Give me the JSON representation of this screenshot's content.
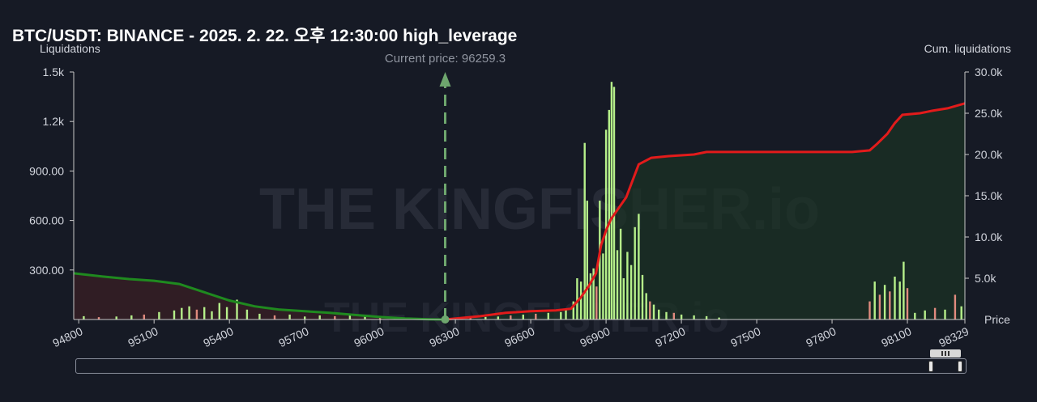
{
  "title": "BTC/USDT: BINANCE - 2025. 2. 22. 오후 12:30:00 high_leverage",
  "colors": {
    "background": "#161a25",
    "bars_green": "#b6f08a",
    "bars_red": "#e08a7e",
    "cum_short": "#e21b1b",
    "cum_long": "#1f8a1f",
    "current_price_line": "#6ea66e"
  },
  "watermark": "THE KINGFISHER.io",
  "chart_data": {
    "type": "bar",
    "title": "BTC/USDT: BINANCE - 2025. 2. 22. 오후 12:30:00 high_leverage",
    "xlabel": "Price",
    "ylabel": "Liquidations",
    "y2label": "Cum. liquidations",
    "current_price_label": "Current price: 96259.3",
    "current_price": 96259.3,
    "xlim": [
      94780,
      98329
    ],
    "ylim": [
      0,
      1500
    ],
    "y2lim": [
      0,
      30000
    ],
    "x_ticks": [
      "94800",
      "95100",
      "95400",
      "95700",
      "96000",
      "96300",
      "96600",
      "96900",
      "97200",
      "97500",
      "97800",
      "98100",
      "98329"
    ],
    "x_tick_values": [
      94800,
      95100,
      95400,
      95700,
      96000,
      96300,
      96600,
      96900,
      97200,
      97500,
      97800,
      98100,
      98329
    ],
    "y_ticks": [
      "1.5k",
      "1.2k",
      "900.00",
      "600.00",
      "300.00"
    ],
    "y_tick_values": [
      1500,
      1200,
      900,
      600,
      300
    ],
    "y2_ticks": [
      "30.0k",
      "25.0k",
      "20.0k",
      "15.0k",
      "10.0k",
      "5.0k"
    ],
    "y2_tick_values": [
      30000,
      25000,
      20000,
      15000,
      10000,
      5000
    ],
    "grid": false,
    "bars": [
      {
        "x": 94820,
        "v": 20,
        "c": "g"
      },
      {
        "x": 94880,
        "v": 14,
        "c": "r"
      },
      {
        "x": 94950,
        "v": 18,
        "c": "g"
      },
      {
        "x": 95010,
        "v": 25,
        "c": "g"
      },
      {
        "x": 95060,
        "v": 30,
        "c": "r"
      },
      {
        "x": 95120,
        "v": 45,
        "c": "g"
      },
      {
        "x": 95180,
        "v": 55,
        "c": "g"
      },
      {
        "x": 95210,
        "v": 70,
        "c": "g"
      },
      {
        "x": 95240,
        "v": 80,
        "c": "g"
      },
      {
        "x": 95270,
        "v": 60,
        "c": "r"
      },
      {
        "x": 95300,
        "v": 75,
        "c": "g"
      },
      {
        "x": 95330,
        "v": 50,
        "c": "g"
      },
      {
        "x": 95360,
        "v": 100,
        "c": "g"
      },
      {
        "x": 95390,
        "v": 75,
        "c": "g"
      },
      {
        "x": 95430,
        "v": 120,
        "c": "g"
      },
      {
        "x": 95470,
        "v": 60,
        "c": "g"
      },
      {
        "x": 95520,
        "v": 35,
        "c": "g"
      },
      {
        "x": 95580,
        "v": 25,
        "c": "r"
      },
      {
        "x": 95640,
        "v": 30,
        "c": "g"
      },
      {
        "x": 95700,
        "v": 18,
        "c": "g"
      },
      {
        "x": 95760,
        "v": 25,
        "c": "g"
      },
      {
        "x": 95820,
        "v": 20,
        "c": "r"
      },
      {
        "x": 95880,
        "v": 30,
        "c": "g"
      },
      {
        "x": 95940,
        "v": 20,
        "c": "g"
      },
      {
        "x": 96000,
        "v": 15,
        "c": "r"
      },
      {
        "x": 96060,
        "v": 12,
        "c": "g"
      },
      {
        "x": 96120,
        "v": 8,
        "c": "g"
      },
      {
        "x": 96310,
        "v": 10,
        "c": "r"
      },
      {
        "x": 96360,
        "v": 12,
        "c": "r"
      },
      {
        "x": 96420,
        "v": 15,
        "c": "g"
      },
      {
        "x": 96470,
        "v": 18,
        "c": "g"
      },
      {
        "x": 96520,
        "v": 25,
        "c": "r"
      },
      {
        "x": 96570,
        "v": 30,
        "c": "g"
      },
      {
        "x": 96620,
        "v": 35,
        "c": "r"
      },
      {
        "x": 96670,
        "v": 40,
        "c": "g"
      },
      {
        "x": 96720,
        "v": 45,
        "c": "g"
      },
      {
        "x": 96740,
        "v": 60,
        "c": "g"
      },
      {
        "x": 96770,
        "v": 110,
        "c": "g"
      },
      {
        "x": 96785,
        "v": 250,
        "c": "g"
      },
      {
        "x": 96800,
        "v": 230,
        "c": "g"
      },
      {
        "x": 96815,
        "v": 1070,
        "c": "g"
      },
      {
        "x": 96825,
        "v": 720,
        "c": "g"
      },
      {
        "x": 96838,
        "v": 280,
        "c": "g"
      },
      {
        "x": 96850,
        "v": 310,
        "c": "g"
      },
      {
        "x": 96862,
        "v": 200,
        "c": "r"
      },
      {
        "x": 96875,
        "v": 720,
        "c": "g"
      },
      {
        "x": 96888,
        "v": 400,
        "c": "g"
      },
      {
        "x": 96900,
        "v": 1150,
        "c": "g"
      },
      {
        "x": 96912,
        "v": 1270,
        "c": "g"
      },
      {
        "x": 96922,
        "v": 1440,
        "c": "g"
      },
      {
        "x": 96932,
        "v": 1410,
        "c": "g"
      },
      {
        "x": 96945,
        "v": 420,
        "c": "g"
      },
      {
        "x": 96958,
        "v": 550,
        "c": "g"
      },
      {
        "x": 96970,
        "v": 250,
        "c": "g"
      },
      {
        "x": 96985,
        "v": 410,
        "c": "g"
      },
      {
        "x": 97000,
        "v": 330,
        "c": "g"
      },
      {
        "x": 97015,
        "v": 560,
        "c": "g"
      },
      {
        "x": 97030,
        "v": 640,
        "c": "g"
      },
      {
        "x": 97045,
        "v": 270,
        "c": "g"
      },
      {
        "x": 97060,
        "v": 160,
        "c": "g"
      },
      {
        "x": 97075,
        "v": 110,
        "c": "r"
      },
      {
        "x": 97090,
        "v": 90,
        "c": "g"
      },
      {
        "x": 97110,
        "v": 60,
        "c": "g"
      },
      {
        "x": 97140,
        "v": 45,
        "c": "g"
      },
      {
        "x": 97170,
        "v": 40,
        "c": "r"
      },
      {
        "x": 97200,
        "v": 30,
        "c": "g"
      },
      {
        "x": 97250,
        "v": 25,
        "c": "g"
      },
      {
        "x": 97300,
        "v": 20,
        "c": "g"
      },
      {
        "x": 97350,
        "v": 12,
        "c": "g"
      },
      {
        "x": 97950,
        "v": 110,
        "c": "r"
      },
      {
        "x": 97970,
        "v": 230,
        "c": "g"
      },
      {
        "x": 97990,
        "v": 150,
        "c": "r"
      },
      {
        "x": 98010,
        "v": 210,
        "c": "g"
      },
      {
        "x": 98030,
        "v": 170,
        "c": "r"
      },
      {
        "x": 98050,
        "v": 260,
        "c": "g"
      },
      {
        "x": 98070,
        "v": 230,
        "c": "g"
      },
      {
        "x": 98085,
        "v": 350,
        "c": "g"
      },
      {
        "x": 98100,
        "v": 190,
        "c": "r"
      },
      {
        "x": 98130,
        "v": 40,
        "c": "g"
      },
      {
        "x": 98170,
        "v": 55,
        "c": "g"
      },
      {
        "x": 98210,
        "v": 70,
        "c": "r"
      },
      {
        "x": 98250,
        "v": 60,
        "c": "g"
      },
      {
        "x": 98290,
        "v": 150,
        "c": "r"
      },
      {
        "x": 98315,
        "v": 80,
        "c": "g"
      }
    ],
    "cum_long": [
      {
        "x": 94780,
        "y": 5600
      },
      {
        "x": 94900,
        "y": 5200
      },
      {
        "x": 95000,
        "y": 4900
      },
      {
        "x": 95100,
        "y": 4700
      },
      {
        "x": 95200,
        "y": 4300
      },
      {
        "x": 95300,
        "y": 3300
      },
      {
        "x": 95400,
        "y": 2300
      },
      {
        "x": 95500,
        "y": 1600
      },
      {
        "x": 95600,
        "y": 1200
      },
      {
        "x": 95700,
        "y": 1000
      },
      {
        "x": 95800,
        "y": 800
      },
      {
        "x": 95900,
        "y": 550
      },
      {
        "x": 96000,
        "y": 300
      },
      {
        "x": 96100,
        "y": 120
      },
      {
        "x": 96200,
        "y": 30
      },
      {
        "x": 96259,
        "y": 0
      }
    ],
    "cum_short": [
      {
        "x": 96259,
        "y": 0
      },
      {
        "x": 96400,
        "y": 400
      },
      {
        "x": 96500,
        "y": 800
      },
      {
        "x": 96600,
        "y": 1000
      },
      {
        "x": 96700,
        "y": 1100
      },
      {
        "x": 96760,
        "y": 1300
      },
      {
        "x": 96800,
        "y": 2700
      },
      {
        "x": 96830,
        "y": 4000
      },
      {
        "x": 96860,
        "y": 5600
      },
      {
        "x": 96880,
        "y": 9000
      },
      {
        "x": 96900,
        "y": 10800
      },
      {
        "x": 96920,
        "y": 12200
      },
      {
        "x": 96950,
        "y": 13500
      },
      {
        "x": 96980,
        "y": 14800
      },
      {
        "x": 97000,
        "y": 16400
      },
      {
        "x": 97030,
        "y": 18800
      },
      {
        "x": 97080,
        "y": 19600
      },
      {
        "x": 97150,
        "y": 19800
      },
      {
        "x": 97250,
        "y": 20000
      },
      {
        "x": 97300,
        "y": 20300
      },
      {
        "x": 97500,
        "y": 20300
      },
      {
        "x": 97700,
        "y": 20300
      },
      {
        "x": 97880,
        "y": 20300
      },
      {
        "x": 97950,
        "y": 20500
      },
      {
        "x": 97980,
        "y": 21300
      },
      {
        "x": 98020,
        "y": 22500
      },
      {
        "x": 98050,
        "y": 23800
      },
      {
        "x": 98080,
        "y": 24800
      },
      {
        "x": 98150,
        "y": 25000
      },
      {
        "x": 98200,
        "y": 25300
      },
      {
        "x": 98260,
        "y": 25600
      },
      {
        "x": 98329,
        "y": 26200
      }
    ]
  }
}
